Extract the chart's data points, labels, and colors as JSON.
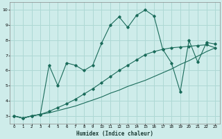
{
  "xlabel": "Humidex (Indice chaleur)",
  "bg_color": "#ceecea",
  "grid_color": "#aed8d4",
  "line_color": "#1a6b5a",
  "xlim": [
    -0.5,
    23.5
  ],
  "ylim": [
    2.5,
    10.5
  ],
  "xticks": [
    0,
    1,
    2,
    3,
    4,
    5,
    6,
    7,
    8,
    9,
    10,
    11,
    12,
    13,
    14,
    15,
    16,
    17,
    18,
    19,
    20,
    21,
    22,
    23
  ],
  "yticks": [
    3,
    4,
    5,
    6,
    7,
    8,
    9,
    10
  ],
  "line1_x": [
    0,
    1,
    2,
    3,
    4,
    5,
    6,
    7,
    8,
    9,
    10,
    11,
    12,
    13,
    14,
    15,
    16,
    17,
    18,
    19,
    20,
    21,
    22,
    23
  ],
  "line1_y": [
    3.0,
    2.85,
    3.0,
    3.1,
    3.2,
    3.35,
    3.5,
    3.65,
    3.85,
    4.05,
    4.25,
    4.5,
    4.7,
    4.95,
    5.15,
    5.35,
    5.6,
    5.85,
    6.1,
    6.4,
    6.65,
    6.95,
    7.25,
    7.5
  ],
  "line2_x": [
    0,
    1,
    2,
    3,
    4,
    5,
    6,
    7,
    8,
    9,
    10,
    11,
    12,
    13,
    14,
    15,
    16,
    17,
    18,
    19,
    20,
    21,
    22,
    23
  ],
  "line2_y": [
    3.0,
    2.85,
    3.0,
    3.1,
    3.3,
    3.55,
    3.8,
    4.1,
    4.45,
    4.8,
    5.2,
    5.6,
    6.0,
    6.35,
    6.7,
    7.05,
    7.25,
    7.4,
    7.5,
    7.55,
    7.6,
    7.65,
    7.7,
    7.5
  ],
  "line3_x": [
    0,
    1,
    2,
    3,
    4,
    5,
    6,
    7,
    8,
    9,
    10,
    11,
    12,
    13,
    14,
    15,
    16,
    17,
    18,
    19,
    20,
    21,
    22,
    23
  ],
  "line3_y": [
    3.0,
    2.85,
    3.0,
    3.1,
    6.35,
    5.0,
    6.5,
    6.35,
    6.0,
    6.35,
    7.8,
    9.0,
    9.55,
    8.85,
    9.65,
    10.0,
    9.6,
    7.4,
    6.5,
    4.6,
    8.0,
    6.55,
    7.85,
    7.75
  ]
}
